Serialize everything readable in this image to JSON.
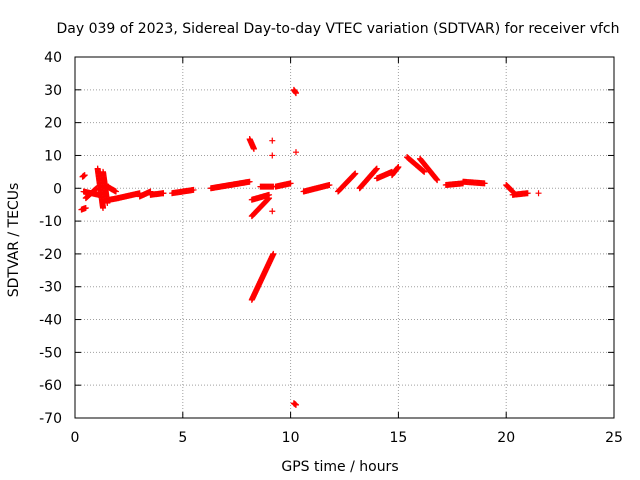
{
  "chart_data": {
    "type": "scatter",
    "title": "Day 039 of 2023, Sidereal Day-to-day VTEC variation (SDTVAR) for receiver vfch",
    "xlabel": "GPS time / hours",
    "ylabel": "SDTVAR / TECUs",
    "xlim": [
      0,
      25
    ],
    "ylim": [
      -70,
      40
    ],
    "xticks": [
      0,
      5,
      10,
      15,
      20,
      25
    ],
    "yticks": [
      -70,
      -60,
      -50,
      -40,
      -30,
      -20,
      -10,
      0,
      10,
      20,
      30,
      40
    ],
    "grid": true,
    "marker": "+",
    "color": "#ff0000",
    "segments": [
      {
        "x": [
          0.35,
          0.45
        ],
        "y": [
          3.5,
          4.0
        ]
      },
      {
        "x": [
          0.3,
          0.5
        ],
        "y": [
          -6.5,
          -6.0
        ]
      },
      {
        "x": [
          0.5,
          1.0
        ],
        "y": [
          -3.0,
          0.0
        ]
      },
      {
        "x": [
          0.4,
          1.1
        ],
        "y": [
          -1.0,
          -2.0
        ]
      },
      {
        "x": [
          1.05,
          1.3
        ],
        "y": [
          6.0,
          -6.0
        ]
      },
      {
        "x": [
          1.3,
          1.5
        ],
        "y": [
          5.0,
          -4.5
        ]
      },
      {
        "x": [
          1.5,
          1.9
        ],
        "y": [
          0.5,
          -1.0
        ]
      },
      {
        "x": [
          1.6,
          2.0
        ],
        "y": [
          -3.5,
          -3.0
        ]
      },
      {
        "x": [
          2.0,
          3.0
        ],
        "y": [
          -3.0,
          -1.5
        ]
      },
      {
        "x": [
          3.0,
          3.5
        ],
        "y": [
          -2.5,
          -1.0
        ]
      },
      {
        "x": [
          3.5,
          4.1
        ],
        "y": [
          -2.0,
          -1.5
        ]
      },
      {
        "x": [
          4.5,
          5.0
        ],
        "y": [
          -1.5,
          -1.0
        ]
      },
      {
        "x": [
          5.0,
          5.5
        ],
        "y": [
          -1.0,
          -0.5
        ]
      },
      {
        "x": [
          6.3,
          7.2
        ],
        "y": [
          0.0,
          1.0
        ]
      },
      {
        "x": [
          7.2,
          8.1
        ],
        "y": [
          1.0,
          2.0
        ]
      },
      {
        "x": [
          8.1,
          8.3
        ],
        "y": [
          15.0,
          12.0
        ]
      },
      {
        "x": [
          8.6,
          9.2
        ],
        "y": [
          0.5,
          0.5
        ]
      },
      {
        "x": [
          8.2,
          9.0
        ],
        "y": [
          -3.5,
          -2.0
        ]
      },
      {
        "x": [
          8.2,
          9.0
        ],
        "y": [
          -8.5,
          -3.0
        ]
      },
      {
        "x": [
          8.2,
          9.2
        ],
        "y": [
          -34.0,
          -20.0
        ]
      },
      {
        "x": [
          9.3,
          10.0
        ],
        "y": [
          0.5,
          1.5
        ]
      },
      {
        "x": [
          10.15,
          10.25
        ],
        "y": [
          30.0,
          29.0
        ]
      },
      {
        "x": [
          10.15,
          10.25
        ],
        "y": [
          -65.5,
          -66.0
        ]
      },
      {
        "x": [
          10.6,
          11.8
        ],
        "y": [
          -1.0,
          1.0
        ]
      },
      {
        "x": [
          12.2,
          13.0
        ],
        "y": [
          -1.0,
          4.5
        ]
      },
      {
        "x": [
          13.2,
          14.0
        ],
        "y": [
          0.0,
          6.0
        ]
      },
      {
        "x": [
          14.0,
          14.7
        ],
        "y": [
          3.0,
          5.0
        ]
      },
      {
        "x": [
          14.7,
          15.0
        ],
        "y": [
          4.0,
          6.5
        ]
      },
      {
        "x": [
          15.4,
          16.2
        ],
        "y": [
          9.5,
          5.0
        ]
      },
      {
        "x": [
          16.0,
          16.8
        ],
        "y": [
          9.0,
          2.5
        ]
      },
      {
        "x": [
          17.2,
          18.0
        ],
        "y": [
          1.0,
          1.5
        ]
      },
      {
        "x": [
          18.0,
          19.0
        ],
        "y": [
          2.0,
          1.5
        ]
      },
      {
        "x": [
          20.0,
          20.3
        ],
        "y": [
          1.0,
          -1.0
        ]
      },
      {
        "x": [
          20.3,
          21.0
        ],
        "y": [
          -2.0,
          -1.5
        ]
      }
    ],
    "points": [
      {
        "x": 9.15,
        "y": 14.5
      },
      {
        "x": 9.15,
        "y": 10.0
      },
      {
        "x": 10.25,
        "y": 11.0
      },
      {
        "x": 9.15,
        "y": -7.0
      },
      {
        "x": 21.5,
        "y": -1.5
      },
      {
        "x": 4.1,
        "y": -1.5
      },
      {
        "x": 1.55,
        "y": 0.5
      }
    ]
  }
}
